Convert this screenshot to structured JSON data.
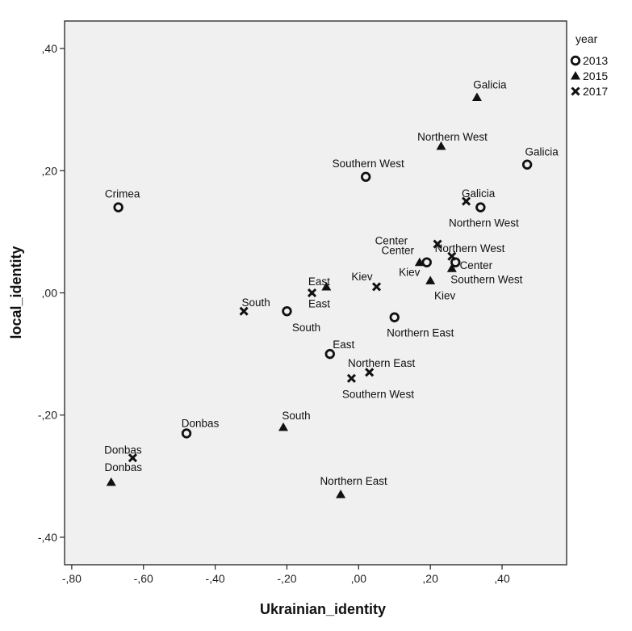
{
  "chart_data": {
    "type": "scatter",
    "xlabel": "Ukrainian_identity",
    "ylabel": "local_identity",
    "xlim": [
      -0.82,
      0.58
    ],
    "ylim": [
      -0.445,
      0.445
    ],
    "x_ticks": [
      -0.8,
      -0.6,
      -0.4,
      -0.2,
      0.0,
      0.2,
      0.4
    ],
    "x_tick_labels": [
      "-,80",
      "-,60",
      "-,40",
      "-,20",
      ",00",
      ",20",
      ",40"
    ],
    "y_ticks": [
      0.4,
      0.2,
      0.0,
      -0.2,
      -0.4
    ],
    "y_tick_labels": [
      ",40",
      ",20",
      ",00",
      "-,20",
      "-,40"
    ],
    "grid": false,
    "plot_background": "#f0f0f0",
    "legend": {
      "title": "year",
      "placement": "top-right",
      "entries": [
        {
          "name": "2013",
          "marker": "circle"
        },
        {
          "name": "2015",
          "marker": "triangle"
        },
        {
          "name": "2017",
          "marker": "x"
        }
      ]
    },
    "series": [
      {
        "name": "2013",
        "marker": "circle",
        "points": [
          {
            "label": "Crimea",
            "x": -0.67,
            "y": 0.14
          },
          {
            "label": "Southern West",
            "x": 0.02,
            "y": 0.19
          },
          {
            "label": "Galicia",
            "x": 0.47,
            "y": 0.21
          },
          {
            "label": "Northern West",
            "x": 0.34,
            "y": 0.14
          },
          {
            "label": "Center",
            "x": 0.19,
            "y": 0.05
          },
          {
            "label": "Kiev",
            "x": 0.27,
            "y": 0.05
          },
          {
            "label": "South",
            "x": -0.2,
            "y": -0.03
          },
          {
            "label": "Northern East",
            "x": 0.1,
            "y": -0.04
          },
          {
            "label": "East",
            "x": -0.08,
            "y": -0.1
          },
          {
            "label": "Donbas",
            "x": -0.48,
            "y": -0.23
          }
        ]
      },
      {
        "name": "2015",
        "marker": "triangle",
        "points": [
          {
            "label": "Galicia",
            "x": 0.33,
            "y": 0.32
          },
          {
            "label": "Northern West",
            "x": 0.23,
            "y": 0.24
          },
          {
            "label": "Center",
            "x": 0.17,
            "y": 0.05
          },
          {
            "label": "Southern West",
            "x": 0.26,
            "y": 0.04
          },
          {
            "label": "Kiev",
            "x": 0.2,
            "y": 0.02
          },
          {
            "label": "East",
            "x": -0.09,
            "y": 0.01
          },
          {
            "label": "South",
            "x": -0.21,
            "y": -0.22
          },
          {
            "label": "Donbas",
            "x": -0.69,
            "y": -0.31
          },
          {
            "label": "Northern East",
            "x": -0.05,
            "y": -0.33
          }
        ]
      },
      {
        "name": "2017",
        "marker": "x",
        "points": [
          {
            "label": "Galicia",
            "x": 0.3,
            "y": 0.15
          },
          {
            "label": "Northern West",
            "x": 0.22,
            "y": 0.08
          },
          {
            "label": "Center",
            "x": 0.26,
            "y": 0.06
          },
          {
            "label": "Kiev",
            "x": 0.05,
            "y": 0.01
          },
          {
            "label": "East",
            "x": -0.13,
            "y": 0.0
          },
          {
            "label": "South",
            "x": -0.32,
            "y": -0.03
          },
          {
            "label": "Northern East",
            "x": 0.03,
            "y": -0.13
          },
          {
            "label": "Southern West",
            "x": -0.02,
            "y": -0.14
          },
          {
            "label": "Donbas",
            "x": -0.63,
            "y": -0.27
          }
        ]
      }
    ]
  }
}
